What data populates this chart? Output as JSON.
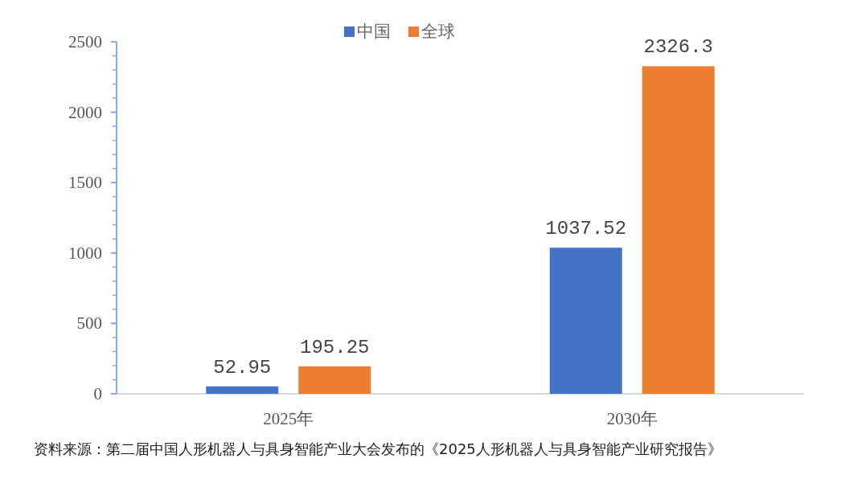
{
  "chart_data": {
    "type": "bar",
    "categories": [
      "2025年",
      "2030年"
    ],
    "series": [
      {
        "name": "中国",
        "color": "#4472c4",
        "values": [
          52.95,
          1037.52
        ]
      },
      {
        "name": "全球",
        "color": "#ed7d31",
        "values": [
          195.25,
          2326.3
        ]
      }
    ],
    "ylim": [
      0,
      2500
    ],
    "yticks": [
      0,
      500,
      1000,
      1500,
      2000,
      2500
    ],
    "data_labels": true,
    "legend": "top",
    "grid": false,
    "annotations": [
      "资料来源：第二届中国人形机器人与具身智能产业大会发布的《2025人形机器人与具身智能产业研究报告》"
    ]
  }
}
